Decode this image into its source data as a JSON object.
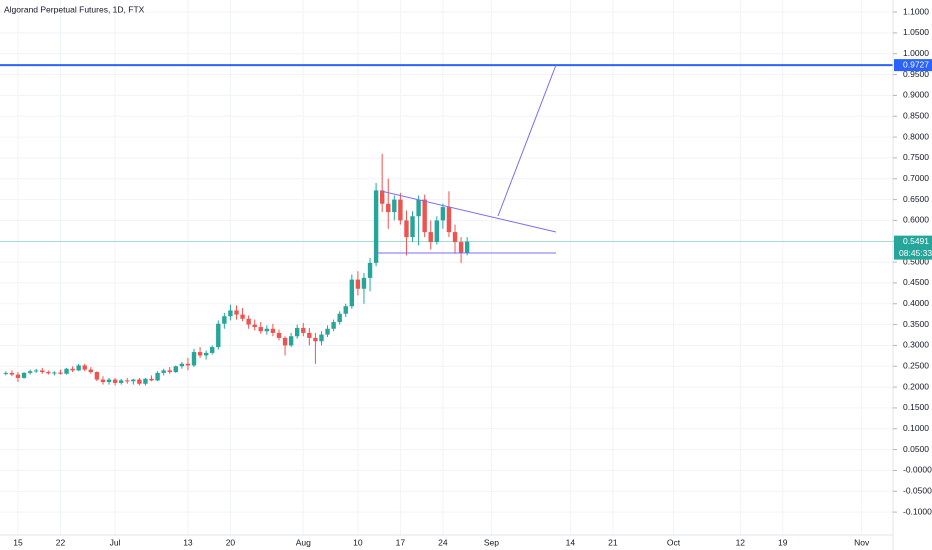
{
  "chart_data": {
    "type": "candlestick",
    "title": "Algorand Perpetual Futures, 1D, FTX",
    "colors": {
      "up": "#26a69a",
      "down": "#ef5350"
    },
    "categories": [
      null,
      null,
      "15",
      null,
      null,
      null,
      null,
      null,
      null,
      "22",
      null,
      null,
      null,
      null,
      null,
      null,
      null,
      null,
      "Jul",
      null,
      null,
      null,
      null,
      null,
      null,
      null,
      null,
      null,
      null,
      null,
      "13",
      null,
      null,
      null,
      null,
      null,
      null,
      "20",
      null,
      null,
      null,
      null,
      null,
      null,
      null,
      null,
      null,
      null,
      null,
      "Aug",
      null,
      null,
      null,
      null,
      null,
      null,
      null,
      null,
      "10",
      null,
      null,
      null,
      null,
      null,
      null,
      "17",
      null,
      null,
      null,
      null,
      null,
      null,
      "24",
      null,
      null,
      null,
      null,
      null,
      null,
      null,
      "Sep",
      null,
      null,
      null,
      null,
      null,
      null,
      null,
      null,
      null,
      null,
      null,
      null,
      "14",
      null,
      null,
      null,
      null,
      null,
      null,
      "21",
      null,
      null,
      null,
      null,
      null,
      null,
      null,
      null,
      null,
      "Oct",
      null,
      null,
      null,
      null,
      null,
      null,
      null,
      null,
      null,
      null,
      "12",
      null,
      null,
      null,
      null,
      null,
      null,
      "19",
      null,
      null,
      null,
      null,
      null,
      null,
      null,
      null,
      null,
      null,
      null,
      null,
      "Nov",
      null,
      null,
      null,
      null,
      null,
      null
    ],
    "open": [
      0.232,
      0.234,
      0.23,
      0.222,
      0.234,
      0.238,
      0.24,
      0.236,
      0.233,
      0.235,
      0.232,
      0.244,
      0.24,
      0.252,
      0.242,
      0.236,
      0.218,
      0.212,
      0.218,
      0.21,
      0.216,
      0.214,
      0.218,
      0.208,
      0.22,
      0.216,
      0.234,
      0.24,
      0.236,
      0.25,
      0.256,
      0.252,
      0.284,
      0.276,
      0.282,
      0.296,
      0.352,
      0.37,
      0.384,
      0.374,
      0.364,
      0.35,
      0.344,
      0.334,
      0.34,
      0.33,
      0.318,
      0.3,
      0.322,
      0.342,
      0.33,
      0.318,
      0.31,
      0.326,
      0.34,
      0.356,
      0.376,
      0.394,
      0.458,
      0.436,
      0.462,
      0.498,
      0.672,
      0.64,
      0.62,
      0.65,
      0.6,
      0.56,
      0.61,
      0.65,
      0.572,
      0.548,
      0.6,
      0.632,
      0.572,
      0.548,
      0.522,
      null,
      null,
      null,
      null,
      null,
      null,
      null,
      null,
      null,
      null,
      null,
      null,
      null,
      null,
      null,
      null,
      null,
      null,
      null,
      null,
      null,
      null,
      null,
      null,
      null,
      null,
      null,
      null,
      null,
      null,
      null,
      null,
      null,
      null,
      null,
      null,
      null,
      null,
      null,
      null,
      null,
      null,
      null,
      null,
      null,
      null,
      null,
      null,
      null,
      null,
      null,
      null,
      null,
      null,
      null,
      null,
      null,
      null,
      null,
      null,
      null,
      null,
      null,
      null,
      null,
      null,
      null,
      null,
      null,
      null,
      null
    ],
    "high": [
      0.238,
      0.24,
      0.236,
      0.236,
      0.242,
      0.244,
      0.246,
      0.24,
      0.238,
      0.242,
      0.246,
      0.25,
      0.256,
      0.256,
      0.248,
      0.238,
      0.226,
      0.222,
      0.222,
      0.22,
      0.222,
      0.22,
      0.222,
      0.222,
      0.228,
      0.238,
      0.244,
      0.248,
      0.252,
      0.26,
      0.27,
      0.292,
      0.296,
      0.288,
      0.3,
      0.36,
      0.378,
      0.398,
      0.396,
      0.39,
      0.372,
      0.362,
      0.356,
      0.348,
      0.352,
      0.338,
      0.322,
      0.33,
      0.35,
      0.354,
      0.342,
      0.33,
      0.334,
      0.348,
      0.362,
      0.382,
      0.4,
      0.47,
      0.478,
      0.474,
      0.51,
      0.69,
      0.76,
      0.7,
      0.66,
      0.666,
      0.624,
      0.622,
      0.66,
      0.662,
      0.6,
      0.61,
      0.64,
      0.67,
      0.59,
      0.56,
      0.56,
      null,
      null,
      null,
      null,
      null,
      null,
      null,
      null,
      null,
      null,
      null,
      null,
      null,
      null,
      null,
      null,
      null,
      null,
      null,
      null,
      null,
      null,
      null,
      null,
      null,
      null,
      null,
      null,
      null,
      null,
      null,
      null,
      null,
      null,
      null,
      null,
      null,
      null,
      null,
      null,
      null,
      null,
      null,
      null,
      null,
      null,
      null,
      null,
      null,
      null,
      null,
      null,
      null,
      null,
      null,
      null,
      null,
      null,
      null,
      null,
      null,
      null,
      null,
      null,
      null,
      null,
      null,
      null,
      null,
      null,
      null
    ],
    "low": [
      0.228,
      0.226,
      0.212,
      0.22,
      0.23,
      0.234,
      0.232,
      0.23,
      0.228,
      0.23,
      0.23,
      0.236,
      0.238,
      0.238,
      0.232,
      0.214,
      0.206,
      0.206,
      0.204,
      0.206,
      0.208,
      0.206,
      0.204,
      0.204,
      0.214,
      0.214,
      0.228,
      0.232,
      0.234,
      0.244,
      0.24,
      0.248,
      0.27,
      0.266,
      0.278,
      0.29,
      0.34,
      0.36,
      0.362,
      0.358,
      0.34,
      0.336,
      0.328,
      0.326,
      0.322,
      0.312,
      0.276,
      0.296,
      0.316,
      0.322,
      0.3,
      0.256,
      0.3,
      0.32,
      0.334,
      0.35,
      0.368,
      0.388,
      0.42,
      0.4,
      0.43,
      0.49,
      0.62,
      0.58,
      0.6,
      0.59,
      0.516,
      0.548,
      0.54,
      0.56,
      0.53,
      0.542,
      0.58,
      0.56,
      0.52,
      0.498,
      0.516,
      null,
      null,
      null,
      null,
      null,
      null,
      null,
      null,
      null,
      null,
      null,
      null,
      null,
      null,
      null,
      null,
      null,
      null,
      null,
      null,
      null,
      null,
      null,
      null,
      null,
      null,
      null,
      null,
      null,
      null,
      null,
      null,
      null,
      null,
      null,
      null,
      null,
      null,
      null,
      null,
      null,
      null,
      null,
      null,
      null,
      null,
      null,
      null,
      null,
      null,
      null,
      null,
      null,
      null,
      null,
      null,
      null,
      null,
      null,
      null,
      null,
      null,
      null,
      null,
      null,
      null,
      null,
      null,
      null,
      null,
      null
    ],
    "close": [
      0.234,
      0.23,
      0.222,
      0.234,
      0.238,
      0.24,
      0.236,
      0.233,
      0.235,
      0.232,
      0.244,
      0.24,
      0.252,
      0.242,
      0.236,
      0.218,
      0.212,
      0.218,
      0.21,
      0.216,
      0.214,
      0.218,
      0.208,
      0.22,
      0.216,
      0.234,
      0.24,
      0.236,
      0.25,
      0.256,
      0.252,
      0.284,
      0.276,
      0.282,
      0.296,
      0.352,
      0.37,
      0.384,
      0.374,
      0.364,
      0.35,
      0.344,
      0.334,
      0.34,
      0.33,
      0.318,
      0.3,
      0.322,
      0.342,
      0.33,
      0.318,
      0.31,
      0.326,
      0.34,
      0.356,
      0.376,
      0.394,
      0.458,
      0.436,
      0.462,
      0.498,
      0.672,
      0.64,
      0.62,
      0.65,
      0.6,
      0.56,
      0.61,
      0.65,
      0.572,
      0.548,
      0.6,
      0.632,
      0.572,
      0.548,
      0.522,
      0.5491,
      null,
      null,
      null,
      null,
      null,
      null,
      null,
      null,
      null,
      null,
      null,
      null,
      null,
      null,
      null,
      null,
      null,
      null,
      null,
      null,
      null,
      null,
      null,
      null,
      null,
      null,
      null,
      null,
      null,
      null,
      null,
      null,
      null,
      null,
      null,
      null,
      null,
      null,
      null,
      null,
      null,
      null,
      null,
      null,
      null,
      null,
      null,
      null,
      null,
      null,
      null,
      null,
      null,
      null,
      null,
      null,
      null,
      null,
      null,
      null,
      null,
      null,
      null,
      null,
      null,
      null,
      null,
      null,
      null,
      null,
      null
    ],
    "ylim": [
      -0.155,
      1.129
    ],
    "yticks": [
      {
        "value": 1.1,
        "label": "1.1000"
      },
      {
        "value": 1.05,
        "label": "1.0500"
      },
      {
        "value": 1.0,
        "label": "1.0000"
      },
      {
        "value": 0.95,
        "label": "0.9500"
      },
      {
        "value": 0.9,
        "label": "0.9000"
      },
      {
        "value": 0.85,
        "label": "0.8500"
      },
      {
        "value": 0.8,
        "label": "0.8000"
      },
      {
        "value": 0.75,
        "label": "0.7500"
      },
      {
        "value": 0.7,
        "label": "0.7000"
      },
      {
        "value": 0.65,
        "label": "0.6500"
      },
      {
        "value": 0.6,
        "label": "0.6000"
      },
      {
        "value": 0.55,
        "label": "0.5500"
      },
      {
        "value": 0.5,
        "label": "0.5000"
      },
      {
        "value": 0.45,
        "label": "0.4500"
      },
      {
        "value": 0.4,
        "label": "0.4000"
      },
      {
        "value": 0.35,
        "label": "0.3500"
      },
      {
        "value": 0.3,
        "label": "0.3000"
      },
      {
        "value": 0.25,
        "label": "0.2500"
      },
      {
        "value": 0.2,
        "label": "0.2000"
      },
      {
        "value": 0.15,
        "label": "0.1500"
      },
      {
        "value": 0.1,
        "label": "0.1000"
      },
      {
        "value": 0.05,
        "label": "0.0500"
      },
      {
        "value": 0,
        "label": "-0.0000"
      },
      {
        "value": -0.05,
        "label": "-0.0500"
      },
      {
        "value": -0.1,
        "label": "-0.1000"
      }
    ],
    "grid": true,
    "price_line": {
      "value": 0.9727,
      "color": "#2962ff"
    },
    "last_price": {
      "value": 0.5491,
      "countdown": "08:45:33",
      "color": "#26a69a"
    }
  }
}
